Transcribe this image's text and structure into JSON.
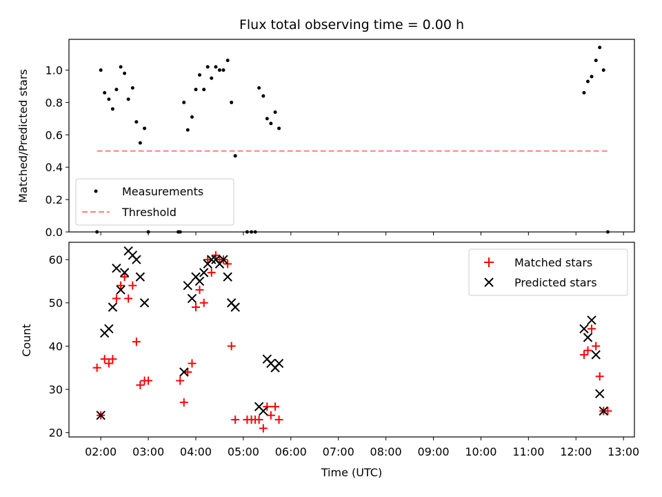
{
  "chart_data": [
    {
      "type": "scatter",
      "title": "Flux total observing time = 0.00 h",
      "xlabel": "",
      "ylabel": "Matched/Predicted stars",
      "xlim": [
        1.33,
        13.23
      ],
      "ylim": [
        0.0,
        1.19
      ],
      "yticks": [
        "0.0",
        "0.2",
        "0.4",
        "0.6",
        "0.8",
        "1.0"
      ],
      "legend_position": "lower-left",
      "series": [
        {
          "name": "Measurements",
          "color": "#000000",
          "marker": "dot",
          "points": [
            [
              1.92,
              0.0
            ],
            [
              2.0,
              1.0
            ],
            [
              2.08,
              0.86
            ],
            [
              2.17,
              0.82
            ],
            [
              2.25,
              0.76
            ],
            [
              2.33,
              0.88
            ],
            [
              2.42,
              1.02
            ],
            [
              2.5,
              0.98
            ],
            [
              2.58,
              0.82
            ],
            [
              2.67,
              0.89
            ],
            [
              2.75,
              0.68
            ],
            [
              2.83,
              0.55
            ],
            [
              2.92,
              0.64
            ],
            [
              3.0,
              0.0
            ],
            [
              3.63,
              0.0
            ],
            [
              3.67,
              0.0
            ],
            [
              3.75,
              0.8
            ],
            [
              3.83,
              0.63
            ],
            [
              3.92,
              0.71
            ],
            [
              4.0,
              0.88
            ],
            [
              4.08,
              0.97
            ],
            [
              4.17,
              0.88
            ],
            [
              4.25,
              1.02
            ],
            [
              4.33,
              0.95
            ],
            [
              4.42,
              1.02
            ],
            [
              4.5,
              1.0
            ],
            [
              4.58,
              1.0
            ],
            [
              4.67,
              1.06
            ],
            [
              4.75,
              0.8
            ],
            [
              4.83,
              0.47
            ],
            [
              5.08,
              0.0
            ],
            [
              5.17,
              0.0
            ],
            [
              5.25,
              0.0
            ],
            [
              5.33,
              0.89
            ],
            [
              5.42,
              0.84
            ],
            [
              5.5,
              0.7
            ],
            [
              5.58,
              0.67
            ],
            [
              5.67,
              0.74
            ],
            [
              5.75,
              0.64
            ],
            [
              12.17,
              0.86
            ],
            [
              12.25,
              0.93
            ],
            [
              12.33,
              0.96
            ],
            [
              12.42,
              1.06
            ],
            [
              12.5,
              1.14
            ],
            [
              12.58,
              1.0
            ],
            [
              12.67,
              0.0
            ]
          ]
        },
        {
          "name": "Threshold",
          "color": "#ff8080",
          "style": "dashed",
          "points": [
            [
              1.92,
              0.5
            ],
            [
              12.67,
              0.5
            ]
          ]
        }
      ]
    },
    {
      "type": "scatter",
      "title": "",
      "xlabel": "Time (UTC)",
      "ylabel": "Count",
      "xlim": [
        1.33,
        13.23
      ],
      "ylim": [
        19,
        64
      ],
      "yticks": [
        "20",
        "30",
        "40",
        "50",
        "60"
      ],
      "xticks": [
        "02:00",
        "03:00",
        "04:00",
        "05:00",
        "06:00",
        "07:00",
        "08:00",
        "09:00",
        "10:00",
        "11:00",
        "12:00",
        "13:00"
      ],
      "legend_position": "upper-right",
      "series": [
        {
          "name": "Matched stars",
          "color": "#ff0000",
          "marker": "plus",
          "points": [
            [
              1.92,
              35
            ],
            [
              2.0,
              24
            ],
            [
              2.08,
              37
            ],
            [
              2.17,
              36
            ],
            [
              2.25,
              37
            ],
            [
              2.33,
              51
            ],
            [
              2.42,
              54
            ],
            [
              2.5,
              56
            ],
            [
              2.58,
              51
            ],
            [
              2.67,
              54
            ],
            [
              2.75,
              41
            ],
            [
              2.83,
              31
            ],
            [
              2.92,
              32
            ],
            [
              3.0,
              32
            ],
            [
              3.67,
              32
            ],
            [
              3.75,
              27
            ],
            [
              3.83,
              34
            ],
            [
              3.92,
              36
            ],
            [
              4.0,
              49
            ],
            [
              4.08,
              53
            ],
            [
              4.17,
              50
            ],
            [
              4.25,
              60
            ],
            [
              4.33,
              57
            ],
            [
              4.42,
              61
            ],
            [
              4.5,
              60
            ],
            [
              4.58,
              60
            ],
            [
              4.67,
              59
            ],
            [
              4.75,
              40
            ],
            [
              4.83,
              23
            ],
            [
              5.08,
              23
            ],
            [
              5.17,
              23
            ],
            [
              5.25,
              23
            ],
            [
              5.33,
              23
            ],
            [
              5.42,
              21
            ],
            [
              5.5,
              26
            ],
            [
              5.58,
              24
            ],
            [
              5.67,
              26
            ],
            [
              5.75,
              23
            ],
            [
              12.17,
              38
            ],
            [
              12.25,
              39
            ],
            [
              12.33,
              44
            ],
            [
              12.42,
              40
            ],
            [
              12.5,
              33
            ],
            [
              12.58,
              25
            ],
            [
              12.67,
              25
            ]
          ]
        },
        {
          "name": "Predicted stars",
          "color": "#000000",
          "marker": "x",
          "points": [
            [
              2.0,
              24
            ],
            [
              2.08,
              43
            ],
            [
              2.17,
              44
            ],
            [
              2.25,
              49
            ],
            [
              2.33,
              58
            ],
            [
              2.42,
              53
            ],
            [
              2.5,
              57
            ],
            [
              2.58,
              62
            ],
            [
              2.67,
              61
            ],
            [
              2.75,
              60
            ],
            [
              2.83,
              56
            ],
            [
              2.92,
              50
            ],
            [
              3.75,
              34
            ],
            [
              3.83,
              54
            ],
            [
              3.92,
              51
            ],
            [
              4.0,
              56
            ],
            [
              4.08,
              55
            ],
            [
              4.17,
              57
            ],
            [
              4.25,
              59
            ],
            [
              4.33,
              60
            ],
            [
              4.42,
              60
            ],
            [
              4.5,
              59
            ],
            [
              4.58,
              60
            ],
            [
              4.67,
              56
            ],
            [
              4.75,
              50
            ],
            [
              4.83,
              49
            ],
            [
              5.33,
              26
            ],
            [
              5.42,
              25
            ],
            [
              5.5,
              37
            ],
            [
              5.58,
              36
            ],
            [
              5.67,
              35
            ],
            [
              5.75,
              36
            ],
            [
              12.17,
              44
            ],
            [
              12.25,
              42
            ],
            [
              12.33,
              46
            ],
            [
              12.42,
              38
            ],
            [
              12.5,
              29
            ],
            [
              12.58,
              25
            ]
          ]
        }
      ]
    }
  ]
}
